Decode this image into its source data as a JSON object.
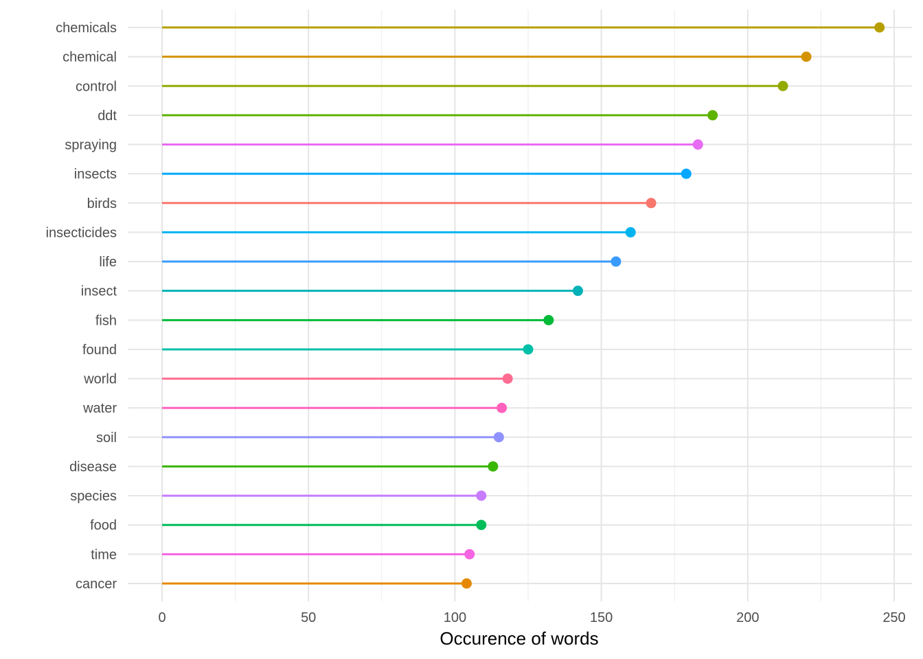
{
  "chart_data": {
    "type": "lollipop",
    "title": "",
    "xlabel": "Occurence of words",
    "ylabel": "",
    "xlim": [
      0,
      250
    ],
    "x_ticks": [
      0,
      50,
      100,
      150,
      200,
      250
    ],
    "grid": true,
    "legend": "none",
    "categories": [
      "chemicals",
      "chemical",
      "control",
      "ddt",
      "spraying",
      "insects",
      "birds",
      "insecticides",
      "life",
      "insect",
      "fish",
      "found",
      "world",
      "water",
      "soil",
      "disease",
      "species",
      "food",
      "time",
      "cancer"
    ],
    "values": [
      245,
      220,
      212,
      188,
      183,
      179,
      167,
      160,
      155,
      142,
      132,
      125,
      118,
      116,
      115,
      113,
      109,
      109,
      105,
      104
    ],
    "colors": [
      "#B79F00",
      "#D39200",
      "#93AA00",
      "#5EB300",
      "#E76BF3",
      "#00A9FF",
      "#F8766D",
      "#00B4F0",
      "#3A9BFF",
      "#00B2B7",
      "#00BA38",
      "#00BFA8",
      "#FF6C91",
      "#FF62BC",
      "#8F91FF",
      "#39B600",
      "#C77CFF",
      "#00BC59",
      "#F564E3",
      "#E58700"
    ]
  }
}
